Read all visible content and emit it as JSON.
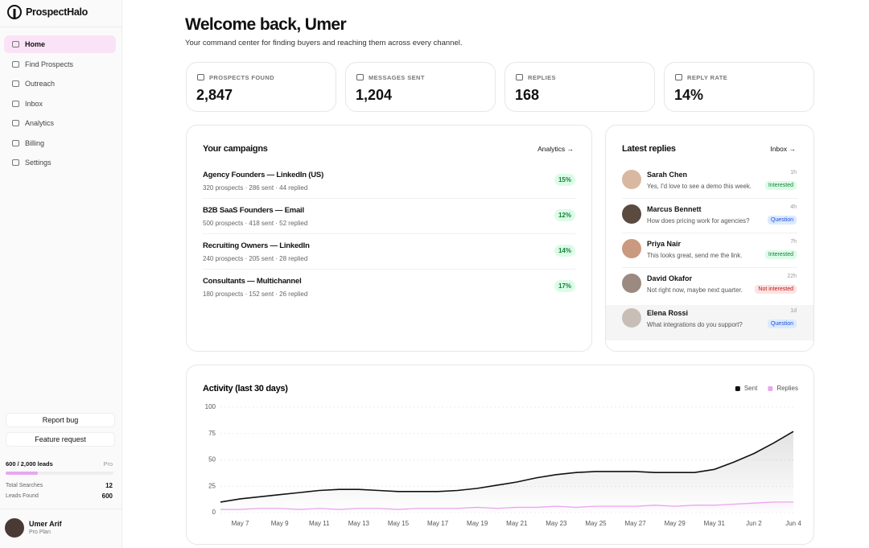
{
  "sidebar": {
    "brand": "ProspectHalo",
    "nav": [
      "Home",
      "Find Prospects",
      "Outreach",
      "Inbox",
      "Analytics",
      "Billing",
      "Settings"
    ],
    "buttons": [
      "Report bug",
      "Feature request"
    ],
    "usage": {
      "label": "600 / 2,000 leads",
      "tier": "Pro",
      "used": 600,
      "limit": 2000
    },
    "stats": [
      {
        "label": "Total Searches",
        "value": "12"
      },
      {
        "label": "Leads Found",
        "value": "600"
      }
    ],
    "user": {
      "name": "Umer Arif",
      "plan": "Pro Plan"
    }
  },
  "header": {
    "title": "Welcome back, Umer",
    "subtitle": "Your command center for finding buyers and reaching them across every channel."
  },
  "kpis": [
    {
      "label": "PROSPECTS FOUND",
      "value": "2,847"
    },
    {
      "label": "MESSAGES SENT",
      "value": "1,204"
    },
    {
      "label": "REPLIES",
      "value": "168"
    },
    {
      "label": "REPLY RATE",
      "value": "14%"
    }
  ],
  "campaigns": {
    "title": "Your campaigns",
    "link": "Analytics",
    "rows": [
      {
        "name": "Agency Founders — LinkedIn (US)",
        "meta": "320 prospects · 286 sent · 44 replied",
        "rate": "15%"
      },
      {
        "name": "B2B SaaS Founders — Email",
        "meta": "500 prospects · 418 sent · 52 replied",
        "rate": "12%"
      },
      {
        "name": "Recruiting Owners — LinkedIn",
        "meta": "240 prospects · 205 sent · 28 replied",
        "rate": "14%"
      },
      {
        "name": "Consultants — Multichannel",
        "meta": "180 prospects · 152 sent · 26 replied",
        "rate": "17%"
      }
    ]
  },
  "replies": {
    "title": "Latest replies",
    "link": "Inbox",
    "items": [
      {
        "name": "Sarah Chen",
        "message": "Yes, I'd love to see a demo this week.",
        "time": "1h",
        "status": "Interested"
      },
      {
        "name": "Marcus Bennett",
        "message": "How does pricing work for agencies?",
        "time": "4h",
        "status": "Question"
      },
      {
        "name": "Priya Nair",
        "message": "This looks great, send me the link.",
        "time": "7h",
        "status": "Interested"
      },
      {
        "name": "David Okafor",
        "message": "Not right now, maybe next quarter.",
        "time": "22h",
        "status": "Not interested"
      },
      {
        "name": "Elena Rossi",
        "message": "What integrations do you support?",
        "time": "1d",
        "status": "Question"
      }
    ]
  },
  "chart_data": {
    "type": "line",
    "title": "Activity (last 30 days)",
    "categories": [
      null,
      "May 7",
      null,
      "May 9",
      null,
      "May 11",
      null,
      "May 13",
      null,
      "May 15",
      null,
      "May 17",
      null,
      "May 19",
      null,
      "May 21",
      null,
      "May 23",
      null,
      "May 25",
      null,
      "May 27",
      null,
      "May 29",
      null,
      "May 31",
      null,
      "Jun 2",
      null,
      "Jun 4"
    ],
    "series": [
      {
        "name": "Sent",
        "color": "#111111",
        "values": [
          10,
          13,
          15,
          17,
          19,
          21,
          22,
          22,
          21,
          20,
          20,
          20,
          21,
          23,
          26,
          29,
          33,
          36,
          38,
          39,
          39,
          39,
          38,
          38,
          38,
          41,
          48,
          56,
          66,
          77
        ]
      },
      {
        "name": "Replies",
        "color": "#e9a6ee",
        "values": [
          3,
          3,
          4,
          4,
          3,
          4,
          3,
          4,
          4,
          3,
          4,
          4,
          4,
          5,
          4,
          5,
          5,
          6,
          5,
          6,
          6,
          6,
          7,
          6,
          7,
          7,
          8,
          9,
          10,
          10
        ]
      }
    ],
    "ylim": [
      0,
      100
    ],
    "yticks": [
      0,
      25,
      50,
      75,
      100
    ],
    "grid": true,
    "legend": "top-right"
  }
}
